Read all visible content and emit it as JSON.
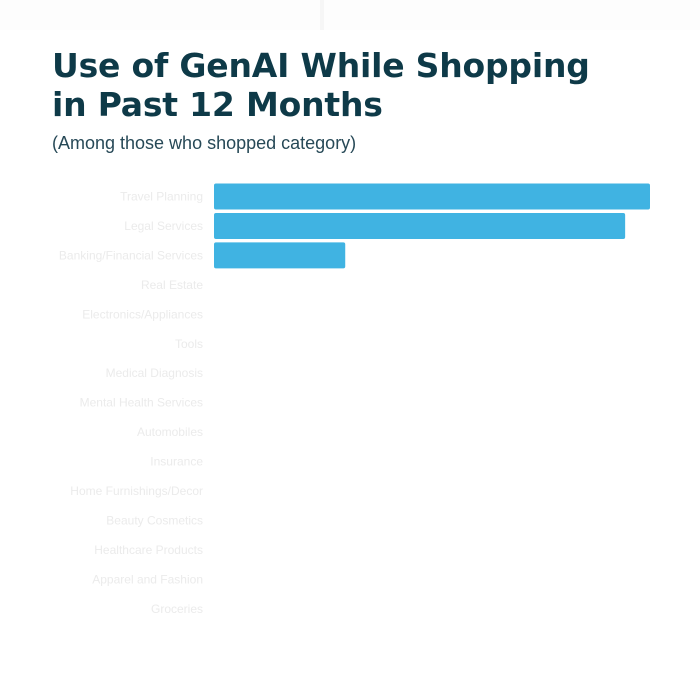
{
  "title_lines": [
    "Use of GenAI While Shopping",
    "in Past 12 Months"
  ],
  "subtitle": "(Among those who shopped category)",
  "colors": {
    "bar": "#40b3e2",
    "title": "#0e3a48",
    "category_label": "#ebebeb"
  },
  "chart_data": {
    "type": "bar",
    "orientation": "horizontal",
    "title": "Use of GenAI While Shopping in Past 12 Months",
    "subtitle": "(Among those who shopped category)",
    "categories": [
      "Travel Planning",
      "Legal Services",
      "Banking/Financial Services",
      "Real Estate",
      "Electronics/Appliances",
      "Tools",
      "Medical Diagnosis",
      "Mental Health Services",
      "Automobiles",
      "Insurance",
      "Home Furnishings/Decor",
      "Beauty Cosmetics",
      "Healthcare Products",
      "Apparel and Fashion",
      "Groceries"
    ],
    "values": [
      100,
      94.3,
      30.1,
      0,
      0,
      0,
      0,
      0,
      0,
      0,
      0,
      0,
      0,
      0,
      0
    ],
    "xlim": [
      0,
      100
    ],
    "xlabel": "",
    "ylabel": "",
    "grid": false,
    "legend": false
  }
}
